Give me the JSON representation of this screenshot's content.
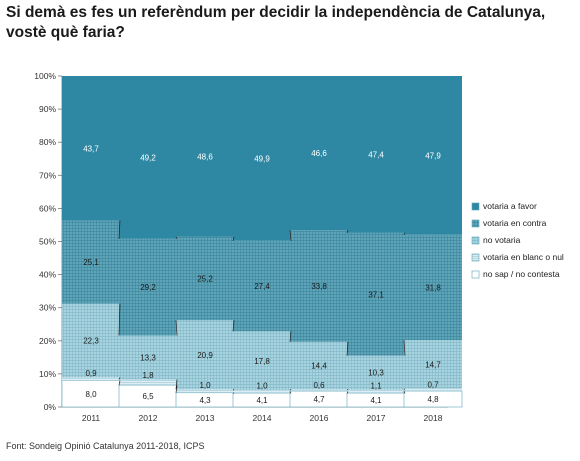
{
  "title_lines": [
    "Si demà es fes un referèndum per decidir la independència de Catalunya,",
    "vostè què faria?"
  ],
  "source": "Font: Sondeig Opinió Catalunya 2011-2018, ICPS",
  "chart_data": {
    "type": "bar",
    "stacked": true,
    "percent_stacked": true,
    "categories": [
      "2011",
      "2012",
      "2013",
      "2014",
      "2016",
      "2017",
      "2018"
    ],
    "series": [
      {
        "name": "no sap / no contesta",
        "values": [
          8.0,
          6.5,
          4.3,
          4.1,
          4.7,
          4.1,
          4.8
        ],
        "labels": [
          "8,0",
          "6,5",
          "4,3",
          "4,1",
          "4,7",
          "4,1",
          "4,8"
        ],
        "color": "#ffffff",
        "pattern": "none"
      },
      {
        "name": "votaria en blanc o nul",
        "values": [
          0.9,
          1.8,
          1.0,
          1.0,
          0.6,
          1.1,
          0.7
        ],
        "labels": [
          "0,9",
          "1,8",
          "1,0",
          "1,0",
          "0,6",
          "1,1",
          "0,7"
        ],
        "color": "#dceef3",
        "pattern": "fine"
      },
      {
        "name": "no votaria",
        "values": [
          22.3,
          13.3,
          20.9,
          17.8,
          14.4,
          10.3,
          14.7
        ],
        "labels": [
          "22,3",
          "13,3",
          "20,9",
          "17,8",
          "14,4",
          "10,3",
          "14,7"
        ],
        "color": "#a8d3df",
        "pattern": "grid"
      },
      {
        "name": "votaria en contra",
        "values": [
          25.1,
          29.2,
          25.2,
          27.4,
          33.8,
          37.1,
          31.8
        ],
        "labels": [
          "25,1",
          "29,2",
          "25,2",
          "27,4",
          "33,8",
          "37,1",
          "31,8"
        ],
        "color": "#5fa4b8",
        "pattern": "grid"
      },
      {
        "name": "votaria a favor",
        "values": [
          43.7,
          49.2,
          48.6,
          49.9,
          46.6,
          47.4,
          47.9
        ],
        "labels": [
          "43,7",
          "49,2",
          "48,6",
          "49,9",
          "46,6",
          "47,4",
          "47,9"
        ],
        "color": "#2e88a3",
        "pattern": "none"
      }
    ],
    "legend_order": [
      "votaria a favor",
      "votaria en contra",
      "no votaria",
      "votaria en blanc o nul",
      "no sap / no contesta"
    ],
    "yticks": [
      "0%",
      "10%",
      "20%",
      "30%",
      "40%",
      "50%",
      "60%",
      "70%",
      "80%",
      "90%",
      "100%"
    ],
    "ylim": [
      0,
      100
    ],
    "legend_position": "right",
    "grid": false,
    "connector_lines": true
  }
}
